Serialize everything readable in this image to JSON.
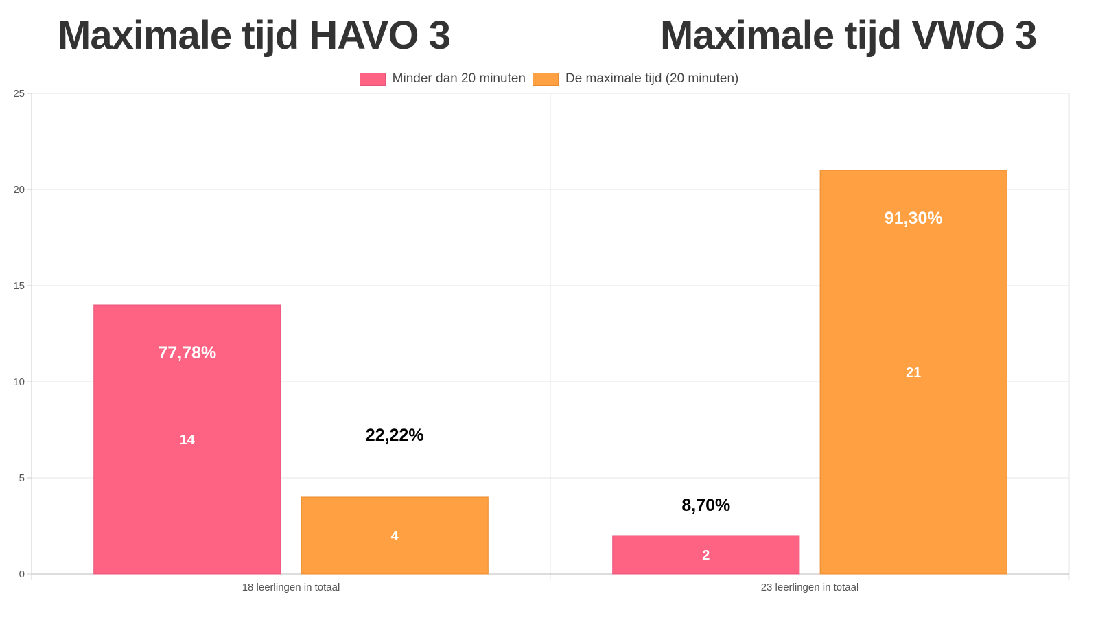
{
  "titles": {
    "left": "Maximale tijd HAVO 3",
    "right": "Maximale tijd VWO 3"
  },
  "chart_data": {
    "type": "bar",
    "categories": [
      "18 leerlingen in totaal",
      "23 leerlingen in totaal"
    ],
    "series": [
      {
        "name": "Minder dan 20 minuten",
        "values": [
          14,
          2
        ],
        "percent_labels": [
          "77,78%",
          "8,70%"
        ],
        "color": "#ff6384",
        "border": "#e8557a"
      },
      {
        "name": "De maximale tijd (20 minuten)",
        "values": [
          4,
          21
        ],
        "percent_labels": [
          "22,22%",
          "91,30%"
        ],
        "color": "#ffa042",
        "border": "#e88a2e"
      }
    ],
    "ylim": [
      0,
      25
    ],
    "yticks": [
      0,
      5,
      10,
      15,
      20,
      25
    ],
    "grid": true,
    "legend": "top-center",
    "xlabel": "",
    "ylabel": ""
  }
}
